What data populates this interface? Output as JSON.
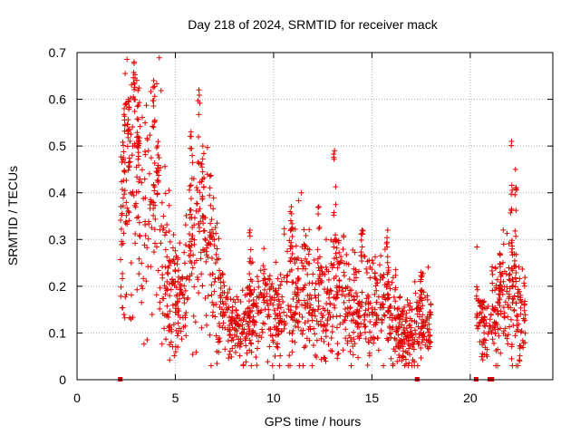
{
  "chart_data": {
    "type": "scatter",
    "title": "Day 218 of 2024, SRMTID for receiver mack",
    "xlabel": "GPS time / hours",
    "ylabel": "SRMTID / TECUs",
    "xlim": [
      0,
      24.2
    ],
    "ylim": [
      0,
      0.7
    ],
    "xticks": [
      0,
      5,
      10,
      15,
      20
    ],
    "xtick_labels": [
      "0",
      "5",
      "10",
      "15",
      "20"
    ],
    "yticks": [
      0,
      0.1,
      0.2,
      0.3,
      0.4,
      0.5,
      0.6,
      0.7
    ],
    "ytick_labels": [
      "0",
      "0.1",
      "0.2",
      "0.3",
      "0.4",
      "0.5",
      "0.6",
      "0.7"
    ],
    "grid": true,
    "marker": "+",
    "series_color": "#e00000",
    "data_span_hours": [
      [
        2.2,
        18.0
      ],
      [
        20.3,
        22.8
      ]
    ],
    "zero_markers_x": [
      2.2,
      17.3,
      20.3,
      21.0,
      21.1
    ],
    "envelope": [
      {
        "x": 2.2,
        "y": 0.24
      },
      {
        "x": 2.5,
        "y": 0.42
      },
      {
        "x": 2.8,
        "y": 0.62
      },
      {
        "x": 3.0,
        "y": 0.48
      },
      {
        "x": 3.3,
        "y": 0.4
      },
      {
        "x": 3.6,
        "y": 0.35
      },
      {
        "x": 3.9,
        "y": 0.4
      },
      {
        "x": 4.2,
        "y": 0.35
      },
      {
        "x": 4.5,
        "y": 0.22
      },
      {
        "x": 5.0,
        "y": 0.16
      },
      {
        "x": 5.5,
        "y": 0.18
      },
      {
        "x": 5.9,
        "y": 0.3
      },
      {
        "x": 6.3,
        "y": 0.32
      },
      {
        "x": 6.8,
        "y": 0.28
      },
      {
        "x": 7.2,
        "y": 0.16
      },
      {
        "x": 7.8,
        "y": 0.12
      },
      {
        "x": 8.4,
        "y": 0.1
      },
      {
        "x": 9.0,
        "y": 0.13
      },
      {
        "x": 9.6,
        "y": 0.15
      },
      {
        "x": 10.2,
        "y": 0.13
      },
      {
        "x": 10.8,
        "y": 0.19
      },
      {
        "x": 11.4,
        "y": 0.2
      },
      {
        "x": 12.0,
        "y": 0.16
      },
      {
        "x": 12.6,
        "y": 0.15
      },
      {
        "x": 13.2,
        "y": 0.2
      },
      {
        "x": 13.8,
        "y": 0.16
      },
      {
        "x": 14.4,
        "y": 0.14
      },
      {
        "x": 15.0,
        "y": 0.15
      },
      {
        "x": 15.6,
        "y": 0.17
      },
      {
        "x": 16.2,
        "y": 0.12
      },
      {
        "x": 16.8,
        "y": 0.1
      },
      {
        "x": 17.4,
        "y": 0.12
      },
      {
        "x": 18.0,
        "y": 0.12
      },
      {
        "x": 20.3,
        "y": 0.15
      },
      {
        "x": 20.8,
        "y": 0.11
      },
      {
        "x": 21.3,
        "y": 0.14
      },
      {
        "x": 21.8,
        "y": 0.17
      },
      {
        "x": 22.3,
        "y": 0.16
      },
      {
        "x": 22.8,
        "y": 0.13
      }
    ],
    "peaks": [
      {
        "x": 2.4,
        "y": 0.58
      },
      {
        "x": 2.6,
        "y": 0.6
      },
      {
        "x": 2.9,
        "y": 0.68
      },
      {
        "x": 3.1,
        "y": 0.52
      },
      {
        "x": 3.9,
        "y": 0.64
      },
      {
        "x": 4.1,
        "y": 0.5
      },
      {
        "x": 5.8,
        "y": 0.53
      },
      {
        "x": 6.2,
        "y": 0.62
      },
      {
        "x": 6.4,
        "y": 0.5
      },
      {
        "x": 8.8,
        "y": 0.32
      },
      {
        "x": 10.9,
        "y": 0.37
      },
      {
        "x": 12.3,
        "y": 0.37
      },
      {
        "x": 13.1,
        "y": 0.49
      },
      {
        "x": 14.5,
        "y": 0.32
      },
      {
        "x": 15.8,
        "y": 0.32
      },
      {
        "x": 17.5,
        "y": 0.23
      },
      {
        "x": 21.5,
        "y": 0.27
      },
      {
        "x": 22.1,
        "y": 0.51
      },
      {
        "x": 22.3,
        "y": 0.45
      }
    ]
  }
}
